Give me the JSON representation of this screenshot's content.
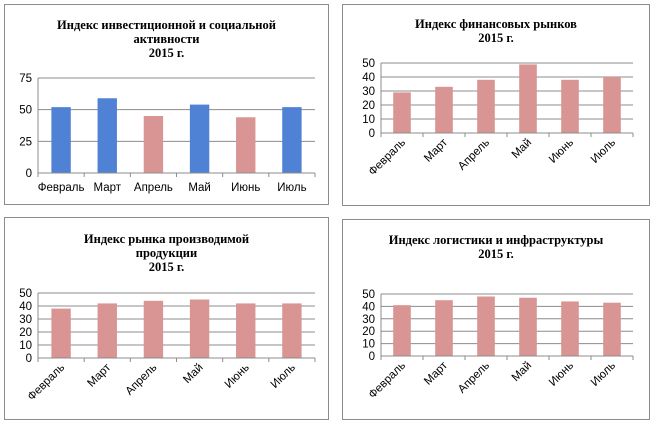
{
  "colors": {
    "blue": "#4f81d5",
    "pink": "#d99594",
    "grid": "#8c8c8c",
    "axis": "#8c8c8c"
  },
  "chart_data": [
    {
      "type": "bar",
      "title_lines": [
        "Индекс  инвестиционной  и  социальной",
        "активности",
        "2015 г."
      ],
      "categories": [
        "Февраль",
        "Март",
        "Апрель",
        "Май",
        "Июнь",
        "Июль"
      ],
      "values": [
        52,
        59,
        45,
        54,
        44,
        52
      ],
      "bar_colors": [
        "blue",
        "blue",
        "pink",
        "blue",
        "pink",
        "blue"
      ],
      "ylim": [
        0,
        75
      ],
      "yticks": [
        0,
        25,
        50,
        75
      ],
      "grid": true,
      "xlabel_rotation": 0
    },
    {
      "type": "bar",
      "title_lines": [
        "Индекс  финансовых  рынков",
        "2015 г."
      ],
      "categories": [
        "Февраль",
        "Март",
        "Апрель",
        "Май",
        "Июнь",
        "Июль"
      ],
      "values": [
        29,
        33,
        38,
        49,
        38,
        40
      ],
      "bar_colors": [
        "pink",
        "pink",
        "pink",
        "pink",
        "pink",
        "pink"
      ],
      "ylim": [
        0,
        50
      ],
      "yticks": [
        0,
        10,
        20,
        30,
        40,
        50
      ],
      "grid": true,
      "xlabel_rotation": -45
    },
    {
      "type": "bar",
      "title_lines": [
        "Индекс  рынка  производимой",
        "продукции",
        "2015 г."
      ],
      "categories": [
        "Февраль",
        "Март",
        "Апрель",
        "Май",
        "Июнь",
        "Июль"
      ],
      "values": [
        38,
        42,
        44,
        45,
        42,
        42
      ],
      "bar_colors": [
        "pink",
        "pink",
        "pink",
        "pink",
        "pink",
        "pink"
      ],
      "ylim": [
        0,
        50
      ],
      "yticks": [
        0,
        10,
        20,
        30,
        40,
        50
      ],
      "grid": true,
      "xlabel_rotation": -45
    },
    {
      "type": "bar",
      "title_lines": [
        "Индекс  логистики  и инфраструктуры",
        "2015 г."
      ],
      "categories": [
        "Февраль",
        "Март",
        "Апрель",
        "Май",
        "Июнь",
        "Июль"
      ],
      "values": [
        41,
        45,
        48,
        47,
        44,
        43
      ],
      "bar_colors": [
        "pink",
        "pink",
        "pink",
        "pink",
        "pink",
        "pink"
      ],
      "ylim": [
        0,
        50
      ],
      "yticks": [
        0,
        10,
        20,
        30,
        40,
        50
      ],
      "grid": true,
      "xlabel_rotation": -45
    }
  ]
}
